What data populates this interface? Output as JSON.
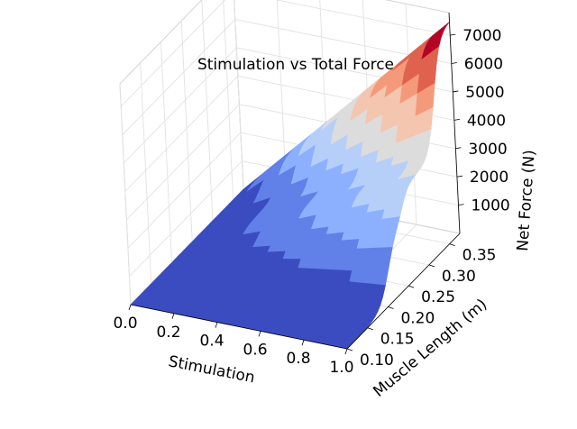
{
  "chart_data": {
    "type": "surface",
    "title": "Stimulation vs Total Force",
    "xlabel": "Stimulation",
    "ylabel": "Muscle Length (m)",
    "zlabel": "Net Force (N)",
    "x_ticks": [
      "0.0",
      "0.2",
      "0.4",
      "0.6",
      "0.8",
      "1.0"
    ],
    "y_ticks": [
      "0.10",
      "0.15",
      "0.20",
      "0.25",
      "0.30",
      "0.35"
    ],
    "z_ticks": [
      "1000",
      "2000",
      "3000",
      "4000",
      "5000",
      "6000",
      "7000"
    ],
    "xlim": [
      0,
      1
    ],
    "ylim": [
      0.1,
      0.375
    ],
    "zlim": [
      0,
      7800
    ],
    "colormap": "coolwarm",
    "surface": {
      "stimulation": [
        0.0,
        0.1,
        0.2,
        0.3,
        0.4,
        0.5,
        0.6,
        0.7,
        0.8,
        0.9,
        1.0
      ],
      "muscle_length": [
        0.1,
        0.15,
        0.2,
        0.25,
        0.3,
        0.35
      ],
      "net_force_at_full_stimulation": [
        0,
        0,
        2500,
        3500,
        4000,
        7500
      ]
    },
    "grid": true
  }
}
